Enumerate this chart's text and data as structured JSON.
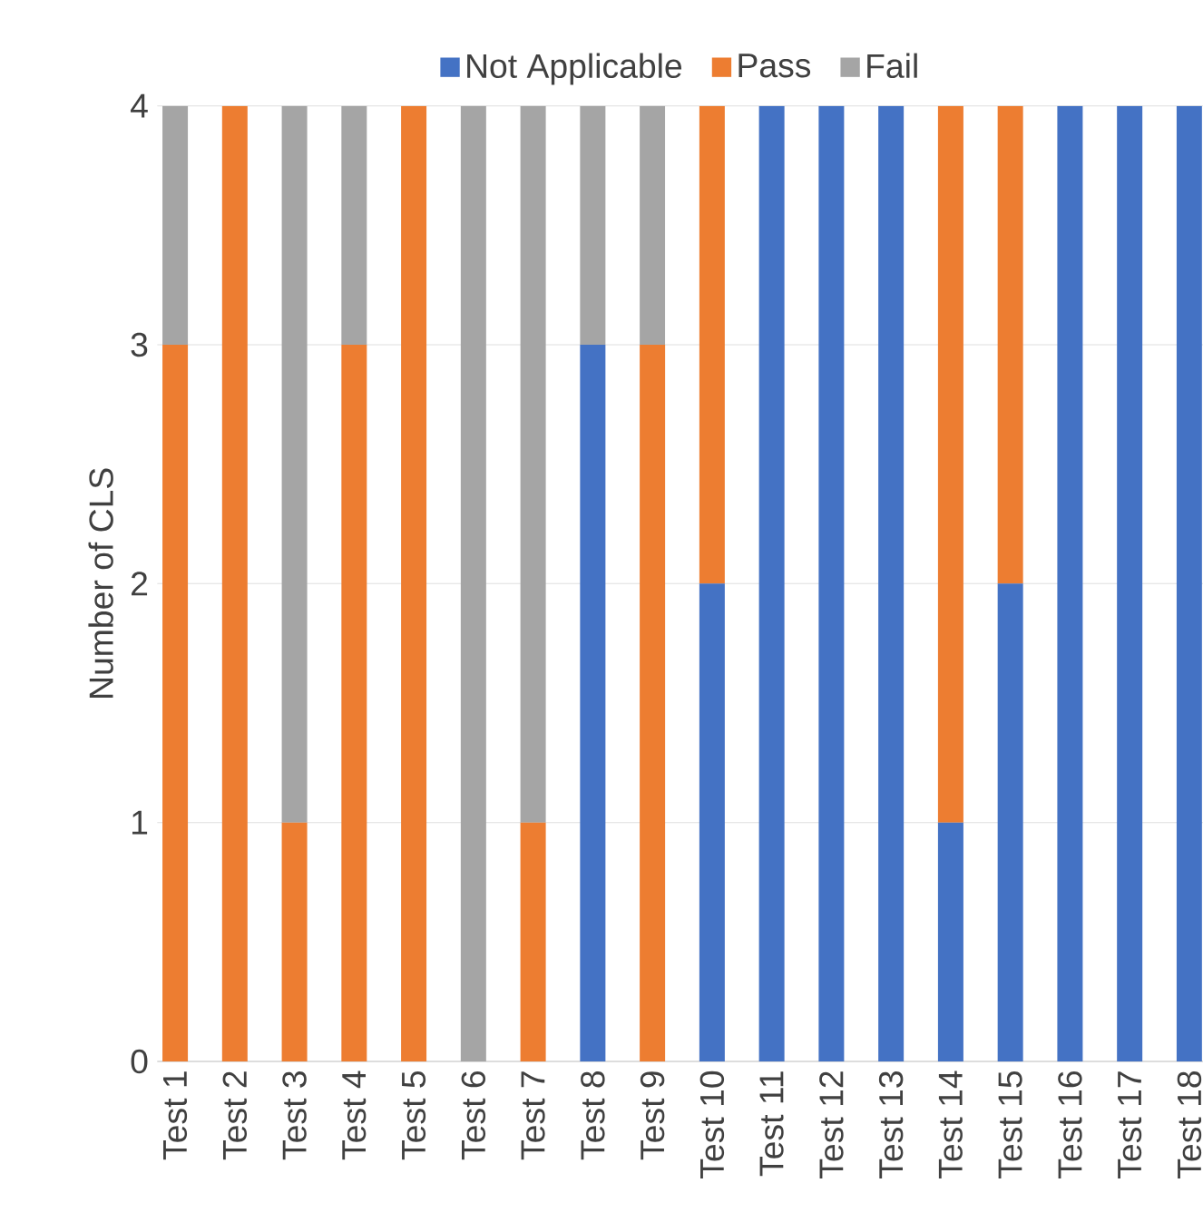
{
  "chart_data": {
    "type": "bar",
    "stacked": true,
    "ylabel": "Number of CLS",
    "categories": [
      "Test 1",
      "Test 2",
      "Test 3",
      "Test 4",
      "Test 5",
      "Test 6",
      "Test 7",
      "Test 8",
      "Test 9",
      "Test 10",
      "Test 11",
      "Test 12",
      "Test 13",
      "Test 14",
      "Test 15",
      "Test 16",
      "Test 17",
      "Test 18"
    ],
    "series": [
      {
        "name": "Not Applicable",
        "color": "#4472c4",
        "values": [
          0,
          0,
          0,
          0,
          0,
          0,
          0,
          3,
          0,
          2,
          4,
          4,
          4,
          1,
          2,
          4,
          4,
          4
        ]
      },
      {
        "name": "Pass",
        "color": "#ed7d31",
        "values": [
          3,
          4,
          1,
          3,
          4,
          0,
          1,
          0,
          3,
          2,
          0,
          0,
          0,
          3,
          2,
          0,
          0,
          0
        ]
      },
      {
        "name": "Fail",
        "color": "#a5a5a5",
        "values": [
          1,
          0,
          3,
          1,
          0,
          4,
          3,
          1,
          1,
          0,
          0,
          0,
          0,
          0,
          0,
          0,
          0,
          0
        ]
      }
    ],
    "ylim": [
      0,
      4
    ],
    "yticks": [
      0,
      1,
      2,
      3,
      4
    ],
    "grid": "y",
    "legend": "top"
  }
}
